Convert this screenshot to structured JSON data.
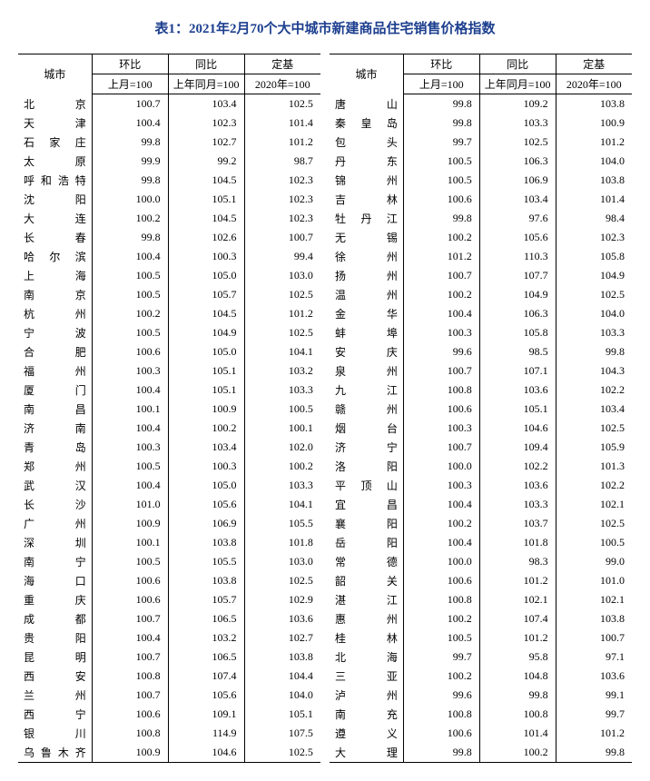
{
  "title": "表1：2021年2月70个大中城市新建商品住宅销售价格指数",
  "headers": {
    "city": "城市",
    "mom": "环比",
    "yoy": "同比",
    "fixed": "定基",
    "mom_sub": "上月=100",
    "yoy_sub": "上年同月=100",
    "fixed_sub": "2020年=100"
  },
  "left": [
    {
      "city": "北京",
      "mom": "100.7",
      "yoy": "103.4",
      "fixed": "102.5"
    },
    {
      "city": "天津",
      "mom": "100.4",
      "yoy": "102.3",
      "fixed": "101.4"
    },
    {
      "city": "石家庄",
      "mom": "99.8",
      "yoy": "102.7",
      "fixed": "101.2"
    },
    {
      "city": "太原",
      "mom": "99.9",
      "yoy": "99.2",
      "fixed": "98.7"
    },
    {
      "city": "呼和浩特",
      "mom": "99.8",
      "yoy": "104.5",
      "fixed": "102.3"
    },
    {
      "city": "沈阳",
      "mom": "100.0",
      "yoy": "105.1",
      "fixed": "102.3"
    },
    {
      "city": "大连",
      "mom": "100.2",
      "yoy": "104.5",
      "fixed": "102.3"
    },
    {
      "city": "长春",
      "mom": "99.8",
      "yoy": "102.6",
      "fixed": "100.7"
    },
    {
      "city": "哈尔滨",
      "mom": "100.4",
      "yoy": "100.3",
      "fixed": "99.4"
    },
    {
      "city": "上海",
      "mom": "100.5",
      "yoy": "105.0",
      "fixed": "103.0"
    },
    {
      "city": "南京",
      "mom": "100.5",
      "yoy": "105.7",
      "fixed": "102.5"
    },
    {
      "city": "杭州",
      "mom": "100.2",
      "yoy": "104.5",
      "fixed": "101.2"
    },
    {
      "city": "宁波",
      "mom": "100.5",
      "yoy": "104.9",
      "fixed": "102.5"
    },
    {
      "city": "合肥",
      "mom": "100.6",
      "yoy": "105.0",
      "fixed": "104.1"
    },
    {
      "city": "福州",
      "mom": "100.3",
      "yoy": "105.1",
      "fixed": "103.2"
    },
    {
      "city": "厦门",
      "mom": "100.4",
      "yoy": "105.1",
      "fixed": "103.3"
    },
    {
      "city": "南昌",
      "mom": "100.1",
      "yoy": "100.9",
      "fixed": "100.5"
    },
    {
      "city": "济南",
      "mom": "100.4",
      "yoy": "100.2",
      "fixed": "100.1"
    },
    {
      "city": "青岛",
      "mom": "100.3",
      "yoy": "103.4",
      "fixed": "102.0"
    },
    {
      "city": "郑州",
      "mom": "100.5",
      "yoy": "100.3",
      "fixed": "100.2"
    },
    {
      "city": "武汉",
      "mom": "100.4",
      "yoy": "105.0",
      "fixed": "103.3"
    },
    {
      "city": "长沙",
      "mom": "101.0",
      "yoy": "105.6",
      "fixed": "104.1"
    },
    {
      "city": "广州",
      "mom": "100.9",
      "yoy": "106.9",
      "fixed": "105.5"
    },
    {
      "city": "深圳",
      "mom": "100.1",
      "yoy": "103.8",
      "fixed": "101.8"
    },
    {
      "city": "南宁",
      "mom": "100.5",
      "yoy": "105.5",
      "fixed": "103.0"
    },
    {
      "city": "海口",
      "mom": "100.6",
      "yoy": "103.8",
      "fixed": "102.5"
    },
    {
      "city": "重庆",
      "mom": "100.6",
      "yoy": "105.7",
      "fixed": "102.9"
    },
    {
      "city": "成都",
      "mom": "100.7",
      "yoy": "106.5",
      "fixed": "103.6"
    },
    {
      "city": "贵阳",
      "mom": "100.4",
      "yoy": "103.2",
      "fixed": "102.7"
    },
    {
      "city": "昆明",
      "mom": "100.7",
      "yoy": "106.5",
      "fixed": "103.8"
    },
    {
      "city": "西安",
      "mom": "100.8",
      "yoy": "107.4",
      "fixed": "104.4"
    },
    {
      "city": "兰州",
      "mom": "100.7",
      "yoy": "105.6",
      "fixed": "104.0"
    },
    {
      "city": "西宁",
      "mom": "100.6",
      "yoy": "109.1",
      "fixed": "105.1"
    },
    {
      "city": "银川",
      "mom": "100.8",
      "yoy": "114.9",
      "fixed": "107.5"
    },
    {
      "city": "乌鲁木齐",
      "mom": "100.9",
      "yoy": "104.6",
      "fixed": "102.5"
    }
  ],
  "right": [
    {
      "city": "唐山",
      "mom": "99.8",
      "yoy": "109.2",
      "fixed": "103.8"
    },
    {
      "city": "秦皇岛",
      "mom": "99.8",
      "yoy": "103.3",
      "fixed": "100.9"
    },
    {
      "city": "包头",
      "mom": "99.7",
      "yoy": "102.5",
      "fixed": "101.2"
    },
    {
      "city": "丹东",
      "mom": "100.5",
      "yoy": "106.3",
      "fixed": "104.0"
    },
    {
      "city": "锦州",
      "mom": "100.5",
      "yoy": "106.9",
      "fixed": "103.8"
    },
    {
      "city": "吉林",
      "mom": "100.6",
      "yoy": "103.4",
      "fixed": "101.4"
    },
    {
      "city": "牡丹江",
      "mom": "99.8",
      "yoy": "97.6",
      "fixed": "98.4"
    },
    {
      "city": "无锡",
      "mom": "100.2",
      "yoy": "105.6",
      "fixed": "102.3"
    },
    {
      "city": "徐州",
      "mom": "101.2",
      "yoy": "110.3",
      "fixed": "105.8"
    },
    {
      "city": "扬州",
      "mom": "100.7",
      "yoy": "107.7",
      "fixed": "104.9"
    },
    {
      "city": "温州",
      "mom": "100.2",
      "yoy": "104.9",
      "fixed": "102.5"
    },
    {
      "city": "金华",
      "mom": "100.4",
      "yoy": "106.3",
      "fixed": "104.0"
    },
    {
      "city": "蚌埠",
      "mom": "100.3",
      "yoy": "105.8",
      "fixed": "103.3"
    },
    {
      "city": "安庆",
      "mom": "99.6",
      "yoy": "98.5",
      "fixed": "99.8"
    },
    {
      "city": "泉州",
      "mom": "100.7",
      "yoy": "107.1",
      "fixed": "104.3"
    },
    {
      "city": "九江",
      "mom": "100.8",
      "yoy": "103.6",
      "fixed": "102.2"
    },
    {
      "city": "赣州",
      "mom": "100.6",
      "yoy": "105.1",
      "fixed": "103.4"
    },
    {
      "city": "烟台",
      "mom": "100.3",
      "yoy": "104.6",
      "fixed": "102.5"
    },
    {
      "city": "济宁",
      "mom": "100.7",
      "yoy": "109.4",
      "fixed": "105.9"
    },
    {
      "city": "洛阳",
      "mom": "100.0",
      "yoy": "102.2",
      "fixed": "101.3"
    },
    {
      "city": "平顶山",
      "mom": "100.3",
      "yoy": "103.6",
      "fixed": "102.2"
    },
    {
      "city": "宜昌",
      "mom": "100.4",
      "yoy": "103.3",
      "fixed": "102.1"
    },
    {
      "city": "襄阳",
      "mom": "100.2",
      "yoy": "103.7",
      "fixed": "102.5"
    },
    {
      "city": "岳阳",
      "mom": "100.4",
      "yoy": "101.8",
      "fixed": "100.5"
    },
    {
      "city": "常德",
      "mom": "100.0",
      "yoy": "98.3",
      "fixed": "99.0"
    },
    {
      "city": "韶关",
      "mom": "100.6",
      "yoy": "101.2",
      "fixed": "101.0"
    },
    {
      "city": "湛江",
      "mom": "100.8",
      "yoy": "102.1",
      "fixed": "102.1"
    },
    {
      "city": "惠州",
      "mom": "100.2",
      "yoy": "107.4",
      "fixed": "103.8"
    },
    {
      "city": "桂林",
      "mom": "100.5",
      "yoy": "101.2",
      "fixed": "100.7"
    },
    {
      "city": "北海",
      "mom": "99.7",
      "yoy": "95.8",
      "fixed": "97.1"
    },
    {
      "city": "三亚",
      "mom": "100.2",
      "yoy": "104.8",
      "fixed": "103.6"
    },
    {
      "city": "泸州",
      "mom": "99.6",
      "yoy": "99.8",
      "fixed": "99.1"
    },
    {
      "city": "南充",
      "mom": "100.8",
      "yoy": "100.8",
      "fixed": "99.7"
    },
    {
      "city": "遵义",
      "mom": "100.6",
      "yoy": "101.4",
      "fixed": "101.2"
    },
    {
      "city": "大理",
      "mom": "99.8",
      "yoy": "100.2",
      "fixed": "99.8"
    }
  ]
}
